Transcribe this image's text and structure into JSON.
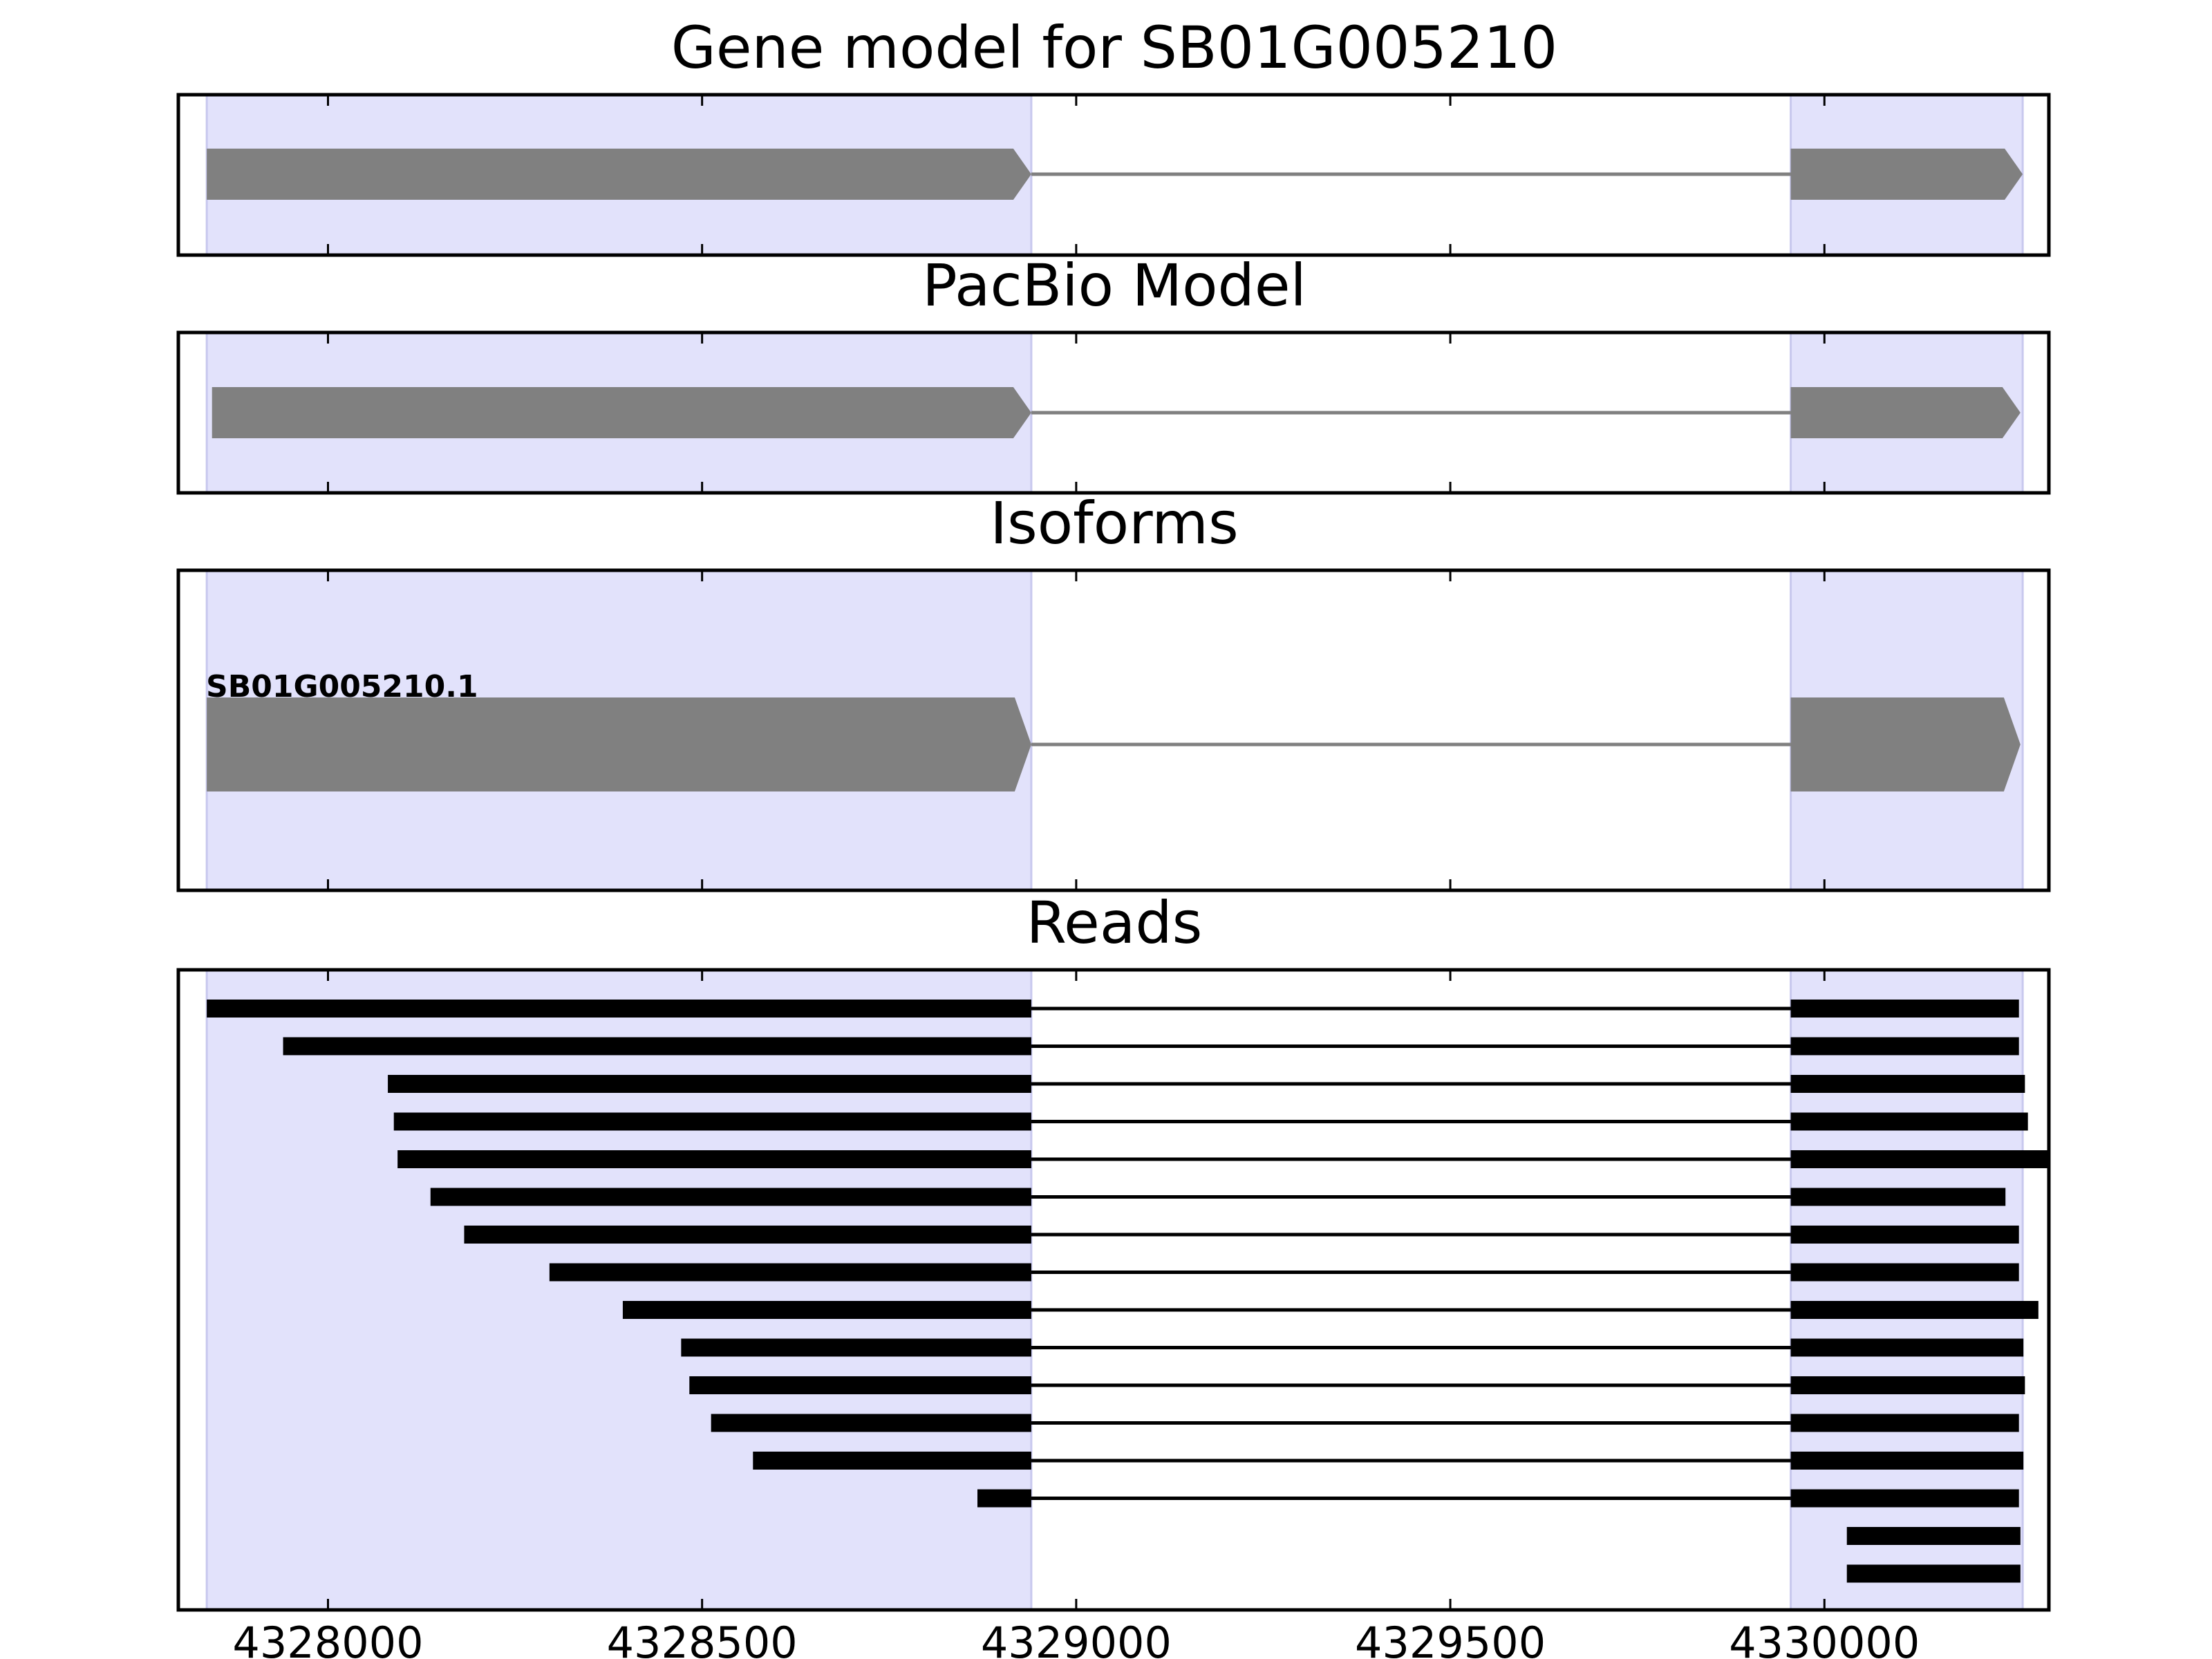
{
  "chart_data": {
    "type": "gene-model-tracks",
    "xlim": [
      4327800,
      4330300
    ],
    "x_ticks": [
      4328000,
      4328500,
      4329000,
      4329500,
      4330000
    ],
    "x_tick_labels": [
      "4328000",
      "4328500",
      "4329000",
      "4329500",
      "4330000"
    ],
    "colors": {
      "exon_shade": "#e2e2fb",
      "exon_shade_edge": "#c8c8ee",
      "gene_feature": "#808080",
      "read": "#000000",
      "frame": "#000000"
    },
    "exon_shading": [
      [
        4327838,
        4328940
      ],
      [
        4329955,
        4330265
      ]
    ],
    "panels": [
      {
        "id": "gene-model",
        "title": "Gene model for SB01G005210",
        "exons": [
          [
            4327838,
            4328940
          ],
          [
            4329955,
            4330265
          ]
        ],
        "strand": "+"
      },
      {
        "id": "pacbio-model",
        "title": "PacBio Model",
        "exons": [
          [
            4327845,
            4328940
          ],
          [
            4329955,
            4330262
          ]
        ],
        "strand": "+"
      },
      {
        "id": "isoforms",
        "title": "Isoforms",
        "isoform_label": "SB01G005210.1",
        "exons": [
          [
            4327838,
            4328940
          ],
          [
            4329955,
            4330262
          ]
        ],
        "strand": "+"
      },
      {
        "id": "reads",
        "title": "Reads",
        "reads": [
          {
            "exons": [
              [
                4327838,
                4328940
              ],
              [
                4329955,
                4330260
              ]
            ]
          },
          {
            "exons": [
              [
                4327940,
                4328940
              ],
              [
                4329955,
                4330260
              ]
            ]
          },
          {
            "exons": [
              [
                4328080,
                4328940
              ],
              [
                4329955,
                4330268
              ]
            ]
          },
          {
            "exons": [
              [
                4328088,
                4328940
              ],
              [
                4329955,
                4330272
              ]
            ]
          },
          {
            "exons": [
              [
                4328093,
                4328940
              ],
              [
                4329955,
                4330300
              ]
            ]
          },
          {
            "exons": [
              [
                4328137,
                4328940
              ],
              [
                4329955,
                4330242
              ]
            ]
          },
          {
            "exons": [
              [
                4328182,
                4328940
              ],
              [
                4329955,
                4330260
              ]
            ]
          },
          {
            "exons": [
              [
                4328296,
                4328940
              ],
              [
                4329955,
                4330260
              ]
            ]
          },
          {
            "exons": [
              [
                4328394,
                4328940
              ],
              [
                4329955,
                4330286
              ]
            ]
          },
          {
            "exons": [
              [
                4328472,
                4328940
              ],
              [
                4329955,
                4330266
              ]
            ]
          },
          {
            "exons": [
              [
                4328483,
                4328940
              ],
              [
                4329955,
                4330268
              ]
            ]
          },
          {
            "exons": [
              [
                4328512,
                4328940
              ],
              [
                4329955,
                4330260
              ]
            ]
          },
          {
            "exons": [
              [
                4328568,
                4328940
              ],
              [
                4329955,
                4330266
              ]
            ]
          },
          {
            "exons": [
              [
                4328868,
                4328940
              ],
              [
                4329955,
                4330260
              ]
            ]
          },
          {
            "exons": [
              [
                4330030,
                4330262
              ]
            ]
          },
          {
            "exons": [
              [
                4330030,
                4330262
              ]
            ]
          }
        ]
      }
    ]
  }
}
